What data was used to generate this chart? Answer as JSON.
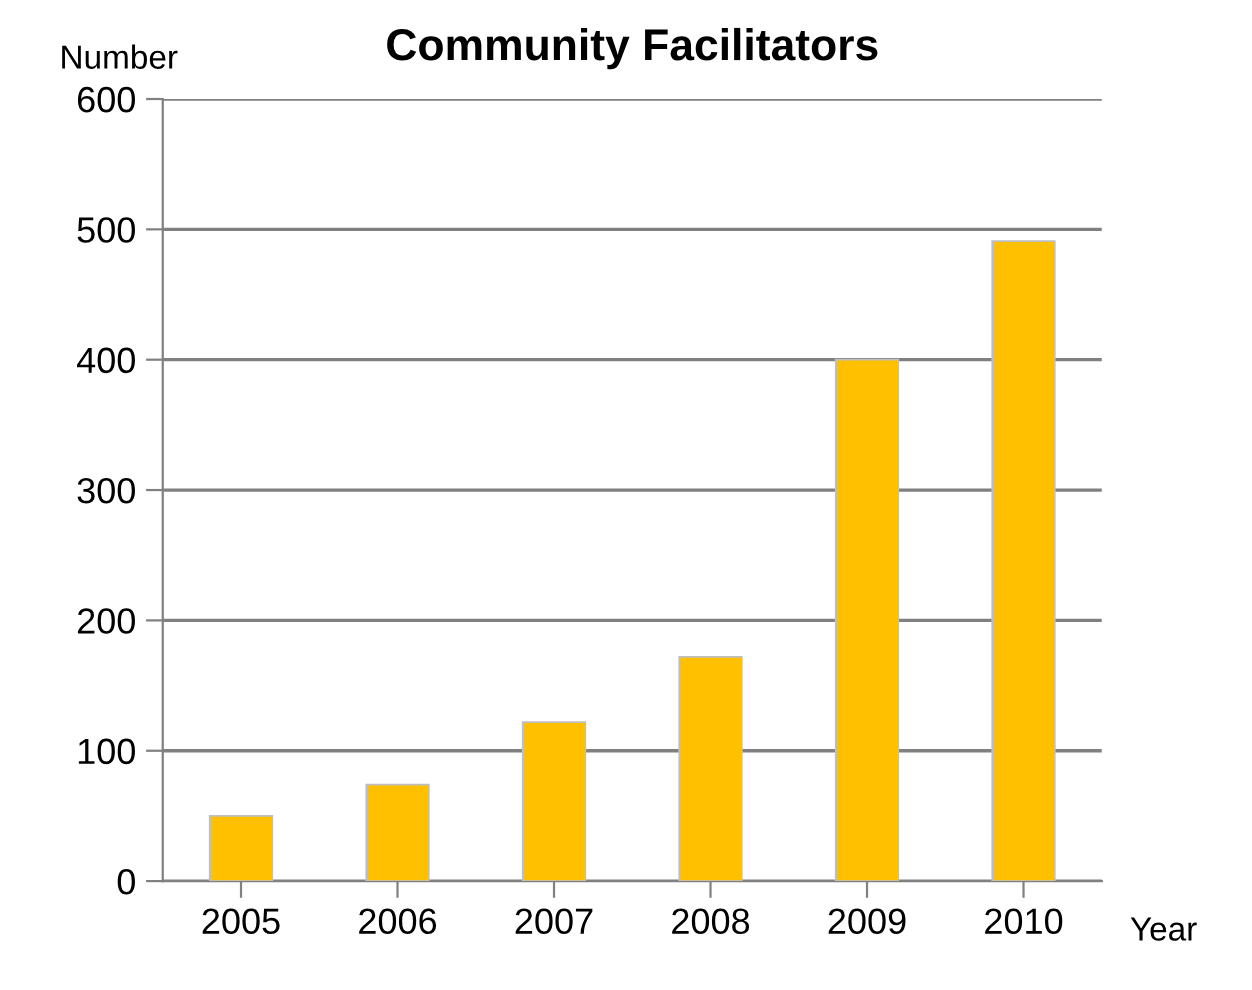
{
  "chart_data": {
    "type": "bar",
    "title": "Community Facilitators",
    "ylabel": "Number",
    "xlabel": "Year",
    "categories": [
      "2005",
      "2006",
      "2007",
      "2008",
      "2009",
      "2010"
    ],
    "values": [
      50,
      74,
      122,
      172,
      400,
      491
    ],
    "color": "#ffc000",
    "ylim": [
      0,
      600
    ],
    "yticks": [
      0,
      100,
      200,
      300,
      400,
      500,
      600
    ],
    "grid": "y"
  }
}
